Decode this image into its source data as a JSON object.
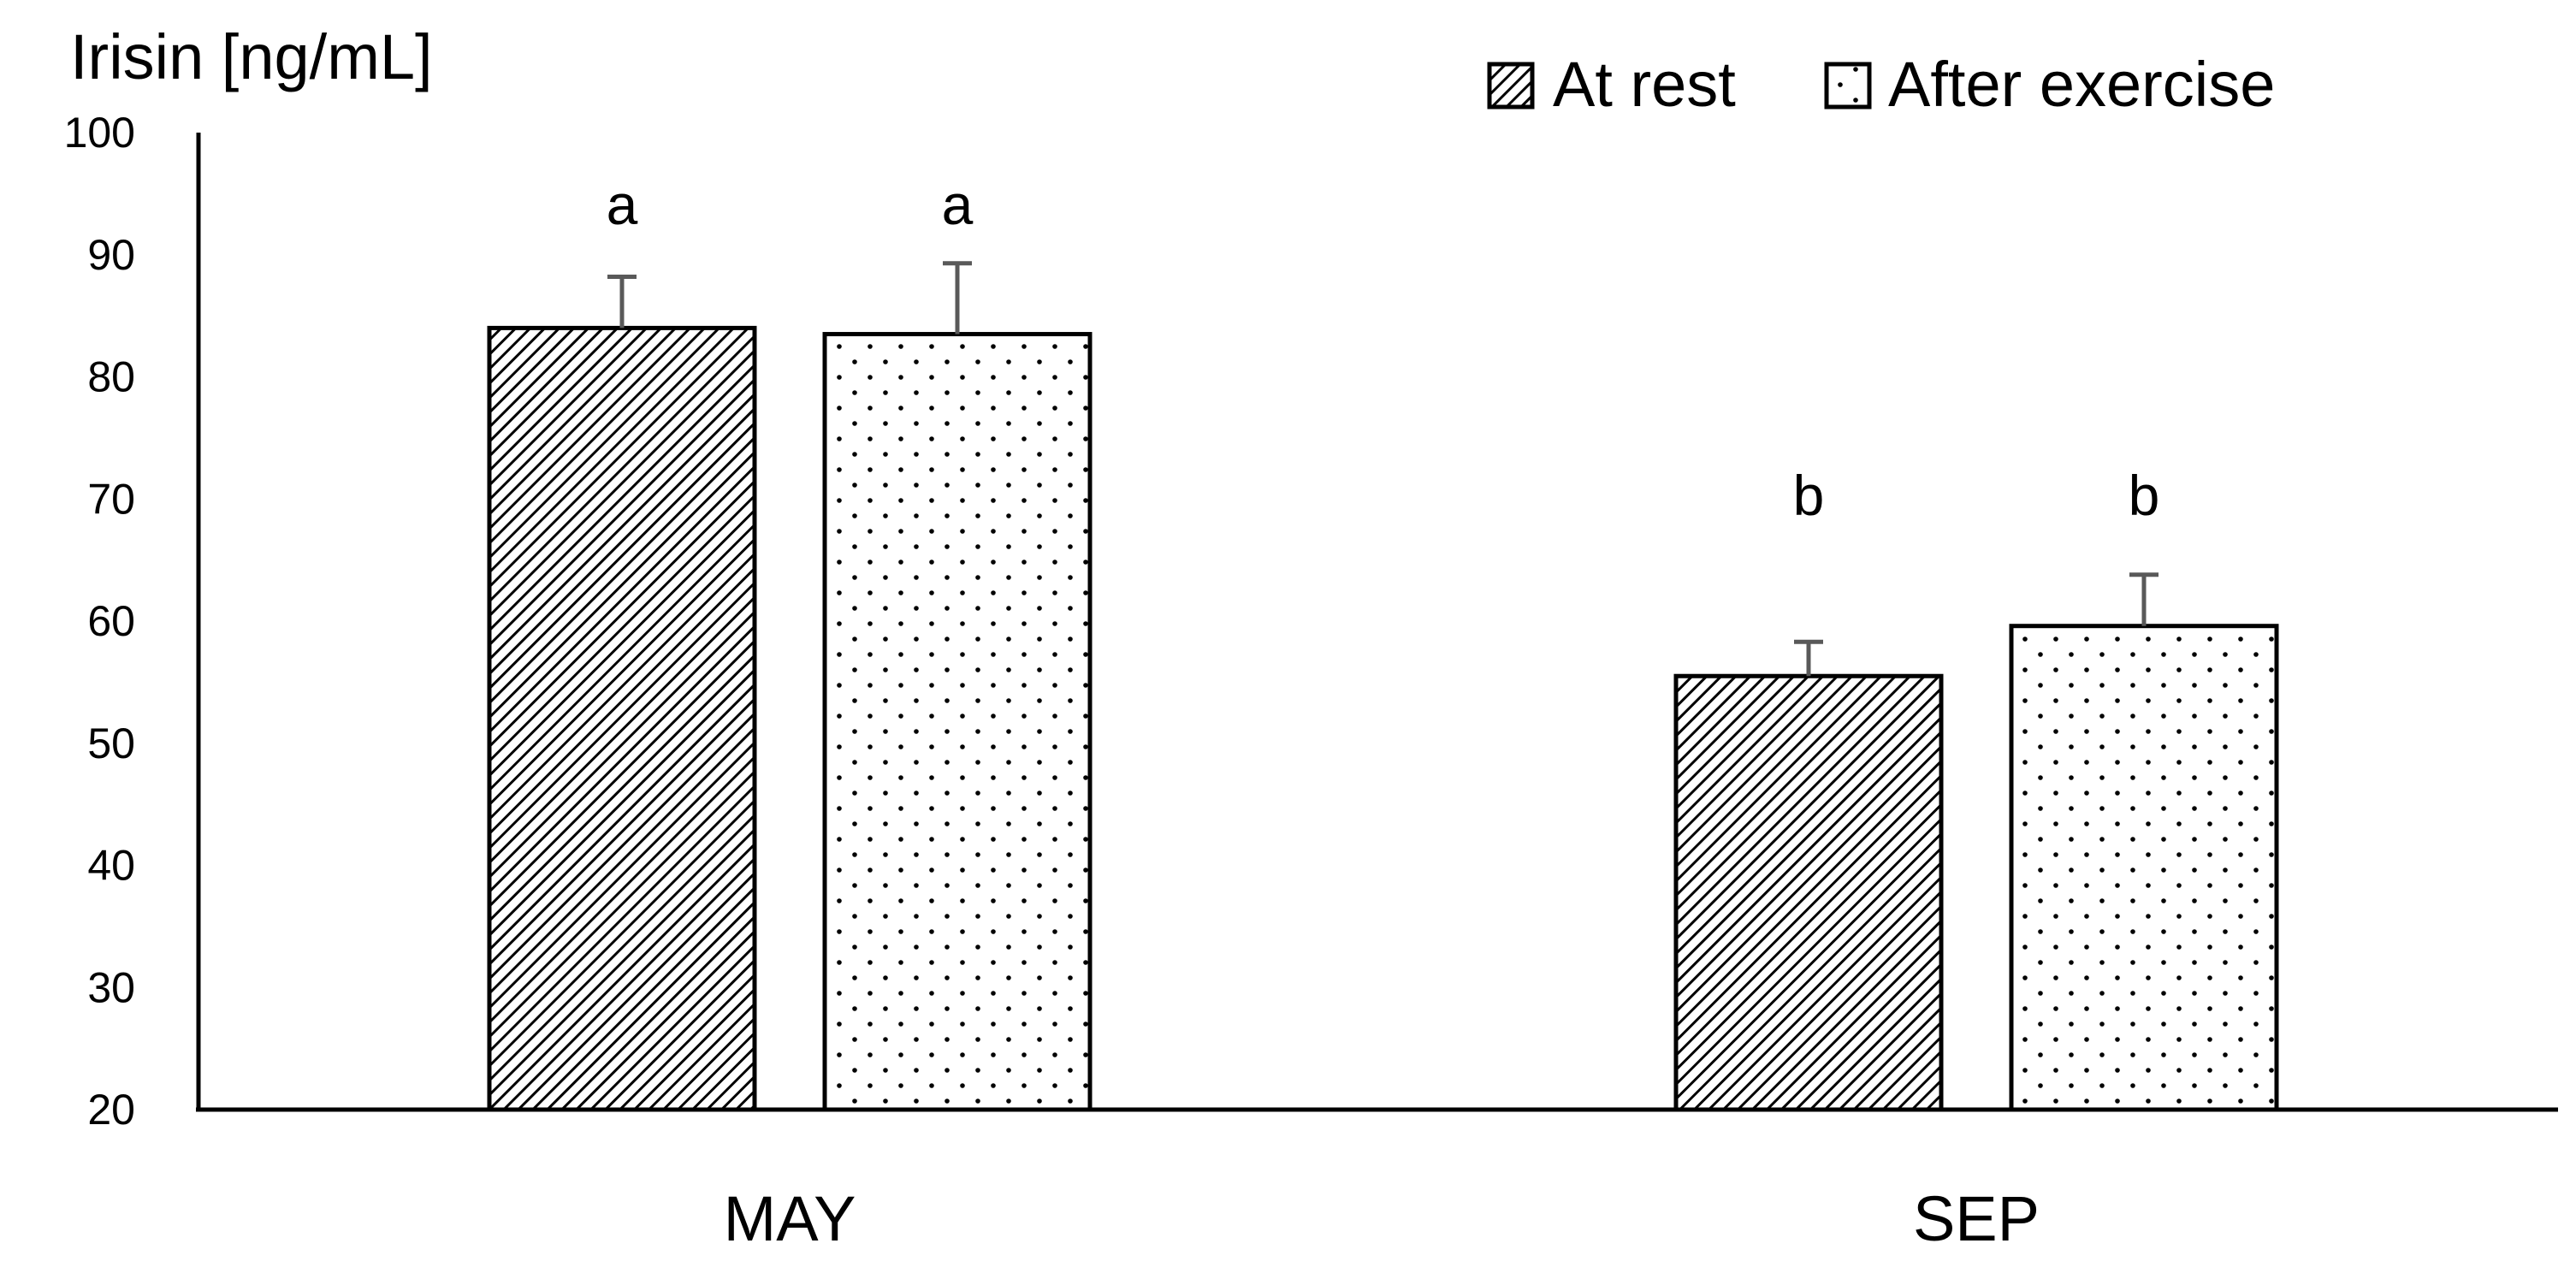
{
  "chart_data": {
    "type": "bar",
    "title": "",
    "xlabel": "",
    "ylabel": "Irisin [ng/mL]",
    "ylim": [
      20,
      100
    ],
    "yticks": [
      20,
      30,
      40,
      50,
      60,
      70,
      80,
      90,
      100
    ],
    "categories": [
      "MAY",
      "SEP"
    ],
    "series": [
      {
        "name": "At rest",
        "pattern": "diagonal-hatch",
        "values": [
          84,
          55.5
        ],
        "errors": [
          4.2,
          2.8
        ],
        "significance": [
          "a",
          "b"
        ]
      },
      {
        "name": "After exercise",
        "pattern": "dots",
        "values": [
          83.5,
          59.6
        ],
        "errors": [
          5.8,
          4.2
        ],
        "significance": [
          "a",
          "b"
        ]
      }
    ],
    "legend": "top-right",
    "grid": false
  },
  "colors": {
    "axis": "#000000",
    "bar_outline": "#000000",
    "error_bar": "#595959",
    "background": "#ffffff"
  }
}
